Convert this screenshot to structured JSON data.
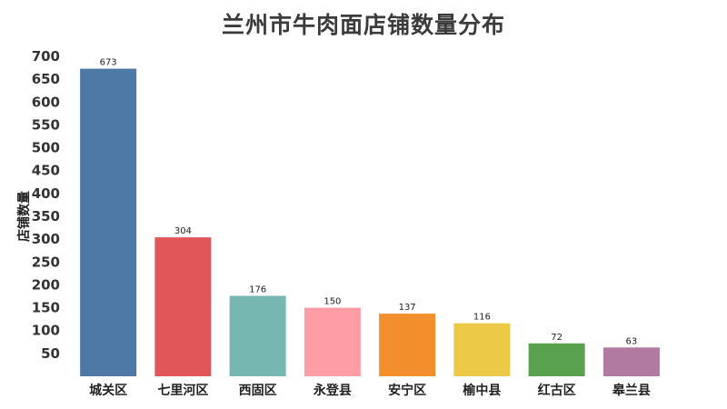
{
  "chart_data": {
    "type": "bar",
    "title": "兰州市牛肉面店铺数量分布",
    "xlabel": "",
    "ylabel": "店铺数量",
    "categories": [
      "城关区",
      "七里河区",
      "西固区",
      "永登县",
      "安宁区",
      "榆中县",
      "红古区",
      "皋兰县"
    ],
    "values": [
      673,
      304,
      176,
      150,
      137,
      116,
      72,
      63
    ],
    "colors": [
      "#4e79a7",
      "#e15759",
      "#76b7b2",
      "#ff9da7",
      "#f28e2b",
      "#edc948",
      "#59a14f",
      "#b07aa1"
    ],
    "ylim": [
      0,
      700
    ],
    "yticks": [
      50,
      100,
      150,
      200,
      250,
      300,
      350,
      400,
      450,
      500,
      550,
      600,
      650,
      700
    ],
    "grid": false,
    "legend": "none"
  }
}
